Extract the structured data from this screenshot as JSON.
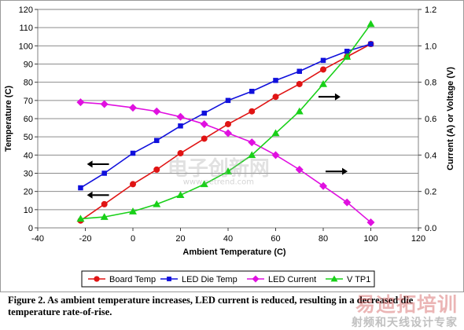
{
  "chart_data": {
    "type": "line",
    "xlabel": "Ambient Temperature (C)",
    "ylabel": "Temperature (C)",
    "y2label": "Current (A) or Voltage (V)",
    "xlim": [
      -40,
      120
    ],
    "ylim": [
      0,
      120
    ],
    "y2lim": [
      0,
      1.2
    ],
    "x_ticks": [
      "-40",
      "-20",
      "0",
      "20",
      "40",
      "60",
      "80",
      "100",
      "120"
    ],
    "y_ticks": [
      "0",
      "10",
      "20",
      "30",
      "40",
      "50",
      "60",
      "70",
      "80",
      "90",
      "100",
      "110",
      "120"
    ],
    "y2_ticks": [
      "0.0",
      "0.2",
      "0.4",
      "0.6",
      "0.8",
      "1.0",
      "1.2"
    ],
    "grid": "horizontal",
    "legend_position": "bottom",
    "series": [
      {
        "name": "Board Temp",
        "axis": "left",
        "color": "#e01414",
        "marker": "circle",
        "x": [
          -22,
          -12,
          0,
          10,
          20,
          30,
          40,
          50,
          60,
          70,
          80,
          90,
          100
        ],
        "y": [
          4,
          13,
          24,
          32,
          41,
          49,
          57,
          64,
          72,
          79,
          87,
          94,
          101
        ]
      },
      {
        "name": "LED Die Temp",
        "axis": "left",
        "color": "#1010dc",
        "marker": "square",
        "x": [
          -22,
          -12,
          0,
          10,
          20,
          30,
          40,
          50,
          60,
          70,
          80,
          90,
          100
        ],
        "y": [
          22,
          30,
          41,
          48,
          56,
          63,
          70,
          75,
          81,
          86,
          92,
          97,
          101
        ]
      },
      {
        "name": "LED Current",
        "axis": "right",
        "color": "#e010e0",
        "marker": "diamond",
        "x": [
          -22,
          -12,
          0,
          10,
          20,
          30,
          40,
          50,
          60,
          70,
          80,
          90,
          100
        ],
        "y": [
          0.69,
          0.68,
          0.66,
          0.64,
          0.61,
          0.57,
          0.52,
          0.47,
          0.4,
          0.32,
          0.23,
          0.14,
          0.03
        ]
      },
      {
        "name": "V TP1",
        "axis": "right",
        "color": "#18d018",
        "marker": "triangle",
        "x": [
          -22,
          -12,
          0,
          10,
          20,
          30,
          40,
          50,
          60,
          70,
          80,
          90,
          100
        ],
        "y": [
          0.05,
          0.06,
          0.09,
          0.13,
          0.18,
          0.24,
          0.31,
          0.4,
          0.52,
          0.64,
          0.79,
          0.94,
          1.12
        ]
      }
    ],
    "annotation_arrows": [
      {
        "direction": "left",
        "x": -17,
        "y": 35
      },
      {
        "direction": "left",
        "x": -17,
        "y": 18
      },
      {
        "direction": "right",
        "x": 78,
        "y": 72
      },
      {
        "direction": "right",
        "x": 81,
        "y": 31
      }
    ]
  },
  "caption": {
    "text": "Figure 2. As ambient temperature increases, LED current is reduced, resulting in a decreased die temperature rate-of-rise."
  },
  "watermarks": {
    "center": "电子创新网",
    "center_url": "www.eetrend.com",
    "bottom_right": "易迪拓培训",
    "bottom_right_sub": "射频和天线设计专家"
  }
}
